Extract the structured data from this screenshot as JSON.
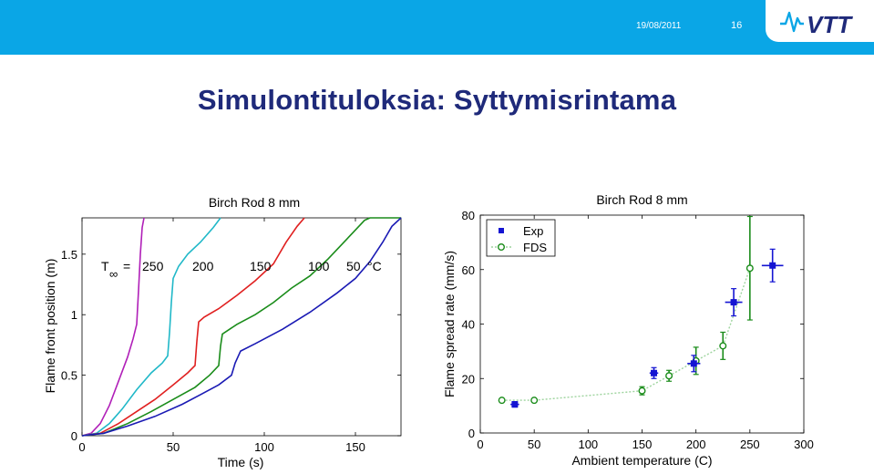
{
  "header": {
    "date": "19/08/2011",
    "page_number": "16",
    "logo_text": "VTT",
    "bar_color": "#0aa6e6"
  },
  "slide": {
    "title": "Simulontituloksia: Syttymisrintama"
  },
  "chart_data": [
    {
      "type": "line",
      "title": "Birch Rod 8 mm",
      "xlabel": "Time (s)",
      "ylabel": "Flame front position (m)",
      "xlim": [
        0,
        175
      ],
      "ylim": [
        0,
        1.8
      ],
      "xticks": [
        "0",
        "50",
        "100",
        "150"
      ],
      "yticks": [
        "0",
        "0.5",
        "1",
        "1.5"
      ],
      "annotation": {
        "prefix": "T",
        "subscript": "∞",
        "equals": "=",
        "unit": "°C"
      },
      "series": [
        {
          "name": "250",
          "color": "#b01fb8",
          "points": [
            [
              0,
              0
            ],
            [
              5,
              0.02
            ],
            [
              10,
              0.1
            ],
            [
              15,
              0.25
            ],
            [
              20,
              0.45
            ],
            [
              25,
              0.65
            ],
            [
              28,
              0.8
            ],
            [
              30,
              0.92
            ],
            [
              31,
              1.2
            ],
            [
              32,
              1.5
            ],
            [
              33,
              1.72
            ],
            [
              34,
              1.8
            ]
          ]
        },
        {
          "name": "200",
          "color": "#20b8c8",
          "points": [
            [
              0,
              0
            ],
            [
              8,
              0.02
            ],
            [
              15,
              0.1
            ],
            [
              22,
              0.22
            ],
            [
              30,
              0.38
            ],
            [
              38,
              0.52
            ],
            [
              44,
              0.6
            ],
            [
              47,
              0.66
            ],
            [
              48,
              0.85
            ],
            [
              49,
              1.1
            ],
            [
              50,
              1.3
            ],
            [
              53,
              1.4
            ],
            [
              58,
              1.5
            ],
            [
              65,
              1.6
            ],
            [
              72,
              1.72
            ],
            [
              76,
              1.8
            ]
          ]
        },
        {
          "name": "150",
          "color": "#e02020",
          "points": [
            [
              0,
              0
            ],
            [
              10,
              0.02
            ],
            [
              20,
              0.1
            ],
            [
              30,
              0.2
            ],
            [
              40,
              0.3
            ],
            [
              50,
              0.42
            ],
            [
              58,
              0.52
            ],
            [
              62,
              0.58
            ],
            [
              63,
              0.78
            ],
            [
              64,
              0.94
            ],
            [
              67,
              0.98
            ],
            [
              75,
              1.05
            ],
            [
              85,
              1.16
            ],
            [
              95,
              1.28
            ],
            [
              105,
              1.42
            ],
            [
              112,
              1.6
            ],
            [
              118,
              1.73
            ],
            [
              122,
              1.8
            ]
          ]
        },
        {
          "name": "100",
          "color": "#1a8c1a",
          "points": [
            [
              0,
              0
            ],
            [
              12,
              0.02
            ],
            [
              25,
              0.1
            ],
            [
              38,
              0.2
            ],
            [
              50,
              0.3
            ],
            [
              62,
              0.4
            ],
            [
              70,
              0.5
            ],
            [
              75,
              0.58
            ],
            [
              76,
              0.74
            ],
            [
              77,
              0.84
            ],
            [
              85,
              0.92
            ],
            [
              95,
              1.0
            ],
            [
              105,
              1.1
            ],
            [
              115,
              1.22
            ],
            [
              125,
              1.32
            ],
            [
              135,
              1.46
            ],
            [
              145,
              1.62
            ],
            [
              155,
              1.78
            ],
            [
              158,
              1.8
            ],
            [
              175,
              1.8
            ]
          ]
        },
        {
          "name": "50",
          "color": "#1a1ab4",
          "points": [
            [
              0,
              0
            ],
            [
              12,
              0.02
            ],
            [
              25,
              0.08
            ],
            [
              40,
              0.16
            ],
            [
              55,
              0.26
            ],
            [
              65,
              0.34
            ],
            [
              75,
              0.42
            ],
            [
              82,
              0.5
            ],
            [
              84,
              0.6
            ],
            [
              87,
              0.7
            ],
            [
              95,
              0.76
            ],
            [
              110,
              0.88
            ],
            [
              125,
              1.02
            ],
            [
              140,
              1.18
            ],
            [
              150,
              1.3
            ],
            [
              158,
              1.44
            ],
            [
              165,
              1.6
            ],
            [
              170,
              1.73
            ],
            [
              175,
              1.8
            ]
          ]
        }
      ]
    },
    {
      "type": "scatter",
      "title": "Birch Rod 8 mm",
      "xlabel": "Ambient temperature (C)",
      "ylabel": "Flame spread rate (mm/s)",
      "xlim": [
        0,
        300
      ],
      "ylim": [
        0,
        80
      ],
      "xticks": [
        "0",
        "50",
        "100",
        "150",
        "200",
        "250",
        "300"
      ],
      "yticks": [
        "0",
        "20",
        "40",
        "60",
        "80"
      ],
      "legend": {
        "position": "top-left"
      },
      "series": [
        {
          "name": "Exp",
          "color": "#1414d2",
          "marker": "square",
          "points": [
            {
              "x": 32,
              "y": 10.5,
              "xerr": 4,
              "yerr": 1
            },
            {
              "x": 161,
              "y": 22,
              "xerr": 4,
              "yerr": 2
            },
            {
              "x": 198,
              "y": 25.5,
              "xerr": 6,
              "yerr": 3
            },
            {
              "x": 235,
              "y": 48,
              "xerr": 8,
              "yerr": 5
            },
            {
              "x": 271,
              "y": 61.5,
              "xerr": 10,
              "yerr": 6
            }
          ]
        },
        {
          "name": "FDS",
          "color": "#1a8c1a",
          "marker": "circle",
          "line_color": "#9ed49e",
          "points": [
            {
              "x": 20,
              "y": 12,
              "yerr": 0.5
            },
            {
              "x": 50,
              "y": 12,
              "yerr": 0.5
            },
            {
              "x": 150,
              "y": 15.5,
              "yerr": 1.5
            },
            {
              "x": 175,
              "y": 21,
              "yerr": 2
            },
            {
              "x": 200,
              "y": 26.5,
              "yerr": 5
            },
            {
              "x": 225,
              "y": 32,
              "yerr": 5
            },
            {
              "x": 250,
              "y": 60.5,
              "yerr": 19
            }
          ]
        }
      ]
    }
  ]
}
